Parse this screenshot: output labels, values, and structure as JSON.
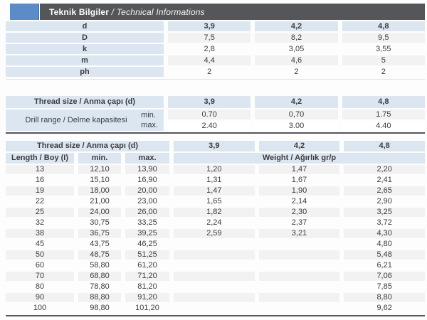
{
  "header": {
    "title": "Teknik Bilgiler",
    "subtitle": " / Technical Informations"
  },
  "colors": {
    "accent_blue": "#5b8cc8",
    "bar_gray": "#55565a",
    "cell_blue": "#dce6f1",
    "stripe_gray": "#f2f2f2",
    "text": "#3c3c3e"
  },
  "dim_table": {
    "rows": [
      {
        "label": "d",
        "values": [
          "3,9",
          "4,2",
          "4,8"
        ]
      },
      {
        "label": "D",
        "values": [
          "7,5",
          "8,2",
          "9,5"
        ]
      },
      {
        "label": "k",
        "values": [
          "2,8",
          "3,05",
          "3,55"
        ]
      },
      {
        "label": "m",
        "values": [
          "4,4",
          "4,6",
          "5"
        ]
      },
      {
        "label": "ph",
        "values": [
          "2",
          "2",
          "2"
        ]
      }
    ]
  },
  "drill_table": {
    "header_label": "Thread size / Anma çapı (d)",
    "header_values": [
      "3,9",
      "4,2",
      "4,8"
    ],
    "range_label": "Drill range / Delme kapasitesi",
    "min_label": "min.",
    "max_label": "max.",
    "min_values": [
      "0.70",
      "0,70",
      "1.75"
    ],
    "max_values": [
      "2.40",
      "3.00",
      "4.40"
    ]
  },
  "length_table": {
    "header_label": "Thread size / Anma çapı (d)",
    "header_values": [
      "3,9",
      "4,2",
      "4,8"
    ],
    "length_label": "Length / Boy (I)",
    "min_label": "min.",
    "max_label": "max.",
    "weight_label": "Weight / Ağırlık gr/p",
    "rows": [
      {
        "length": "13",
        "min": "12,10",
        "max": "13,90",
        "w1": "1,20",
        "w2": "1,47",
        "w3": "2,20"
      },
      {
        "length": "16",
        "min": "15,10",
        "max": "16,90",
        "w1": "1,31",
        "w2": "1,67",
        "w3": "2,41"
      },
      {
        "length": "19",
        "min": "18,00",
        "max": "20,00",
        "w1": "1,47",
        "w2": "1,90",
        "w3": "2,65"
      },
      {
        "length": "22",
        "min": "21,00",
        "max": "23,00",
        "w1": "1,65",
        "w2": "2,14",
        "w3": "2,90"
      },
      {
        "length": "25",
        "min": "24,00",
        "max": "26,00",
        "w1": "1,82",
        "w2": "2,30",
        "w3": "3,25"
      },
      {
        "length": "32",
        "min": "30,75",
        "max": "33,25",
        "w1": "2,24",
        "w2": "2,37",
        "w3": "3,72"
      },
      {
        "length": "38",
        "min": "36,75",
        "max": "39,25",
        "w1": "2,59",
        "w2": "3,21",
        "w3": "4,30"
      },
      {
        "length": "45",
        "min": "43,75",
        "max": "46,25",
        "w1": "",
        "w2": "",
        "w3": "4,80"
      },
      {
        "length": "50",
        "min": "48,75",
        "max": "51,25",
        "w1": "",
        "w2": "",
        "w3": "5,48"
      },
      {
        "length": "60",
        "min": "58,80",
        "max": "61,20",
        "w1": "",
        "w2": "",
        "w3": "6,21"
      },
      {
        "length": "70",
        "min": "68,80",
        "max": "71,20",
        "w1": "",
        "w2": "",
        "w3": "7,06"
      },
      {
        "length": "80",
        "min": "78,80",
        "max": "81,20",
        "w1": "",
        "w2": "",
        "w3": "7,85"
      },
      {
        "length": "90",
        "min": "88,80",
        "max": "91,20",
        "w1": "",
        "w2": "",
        "w3": "8,80"
      },
      {
        "length": "100",
        "min": "98,80",
        "max": "101,20",
        "w1": "",
        "w2": "",
        "w3": "9,62"
      }
    ]
  }
}
